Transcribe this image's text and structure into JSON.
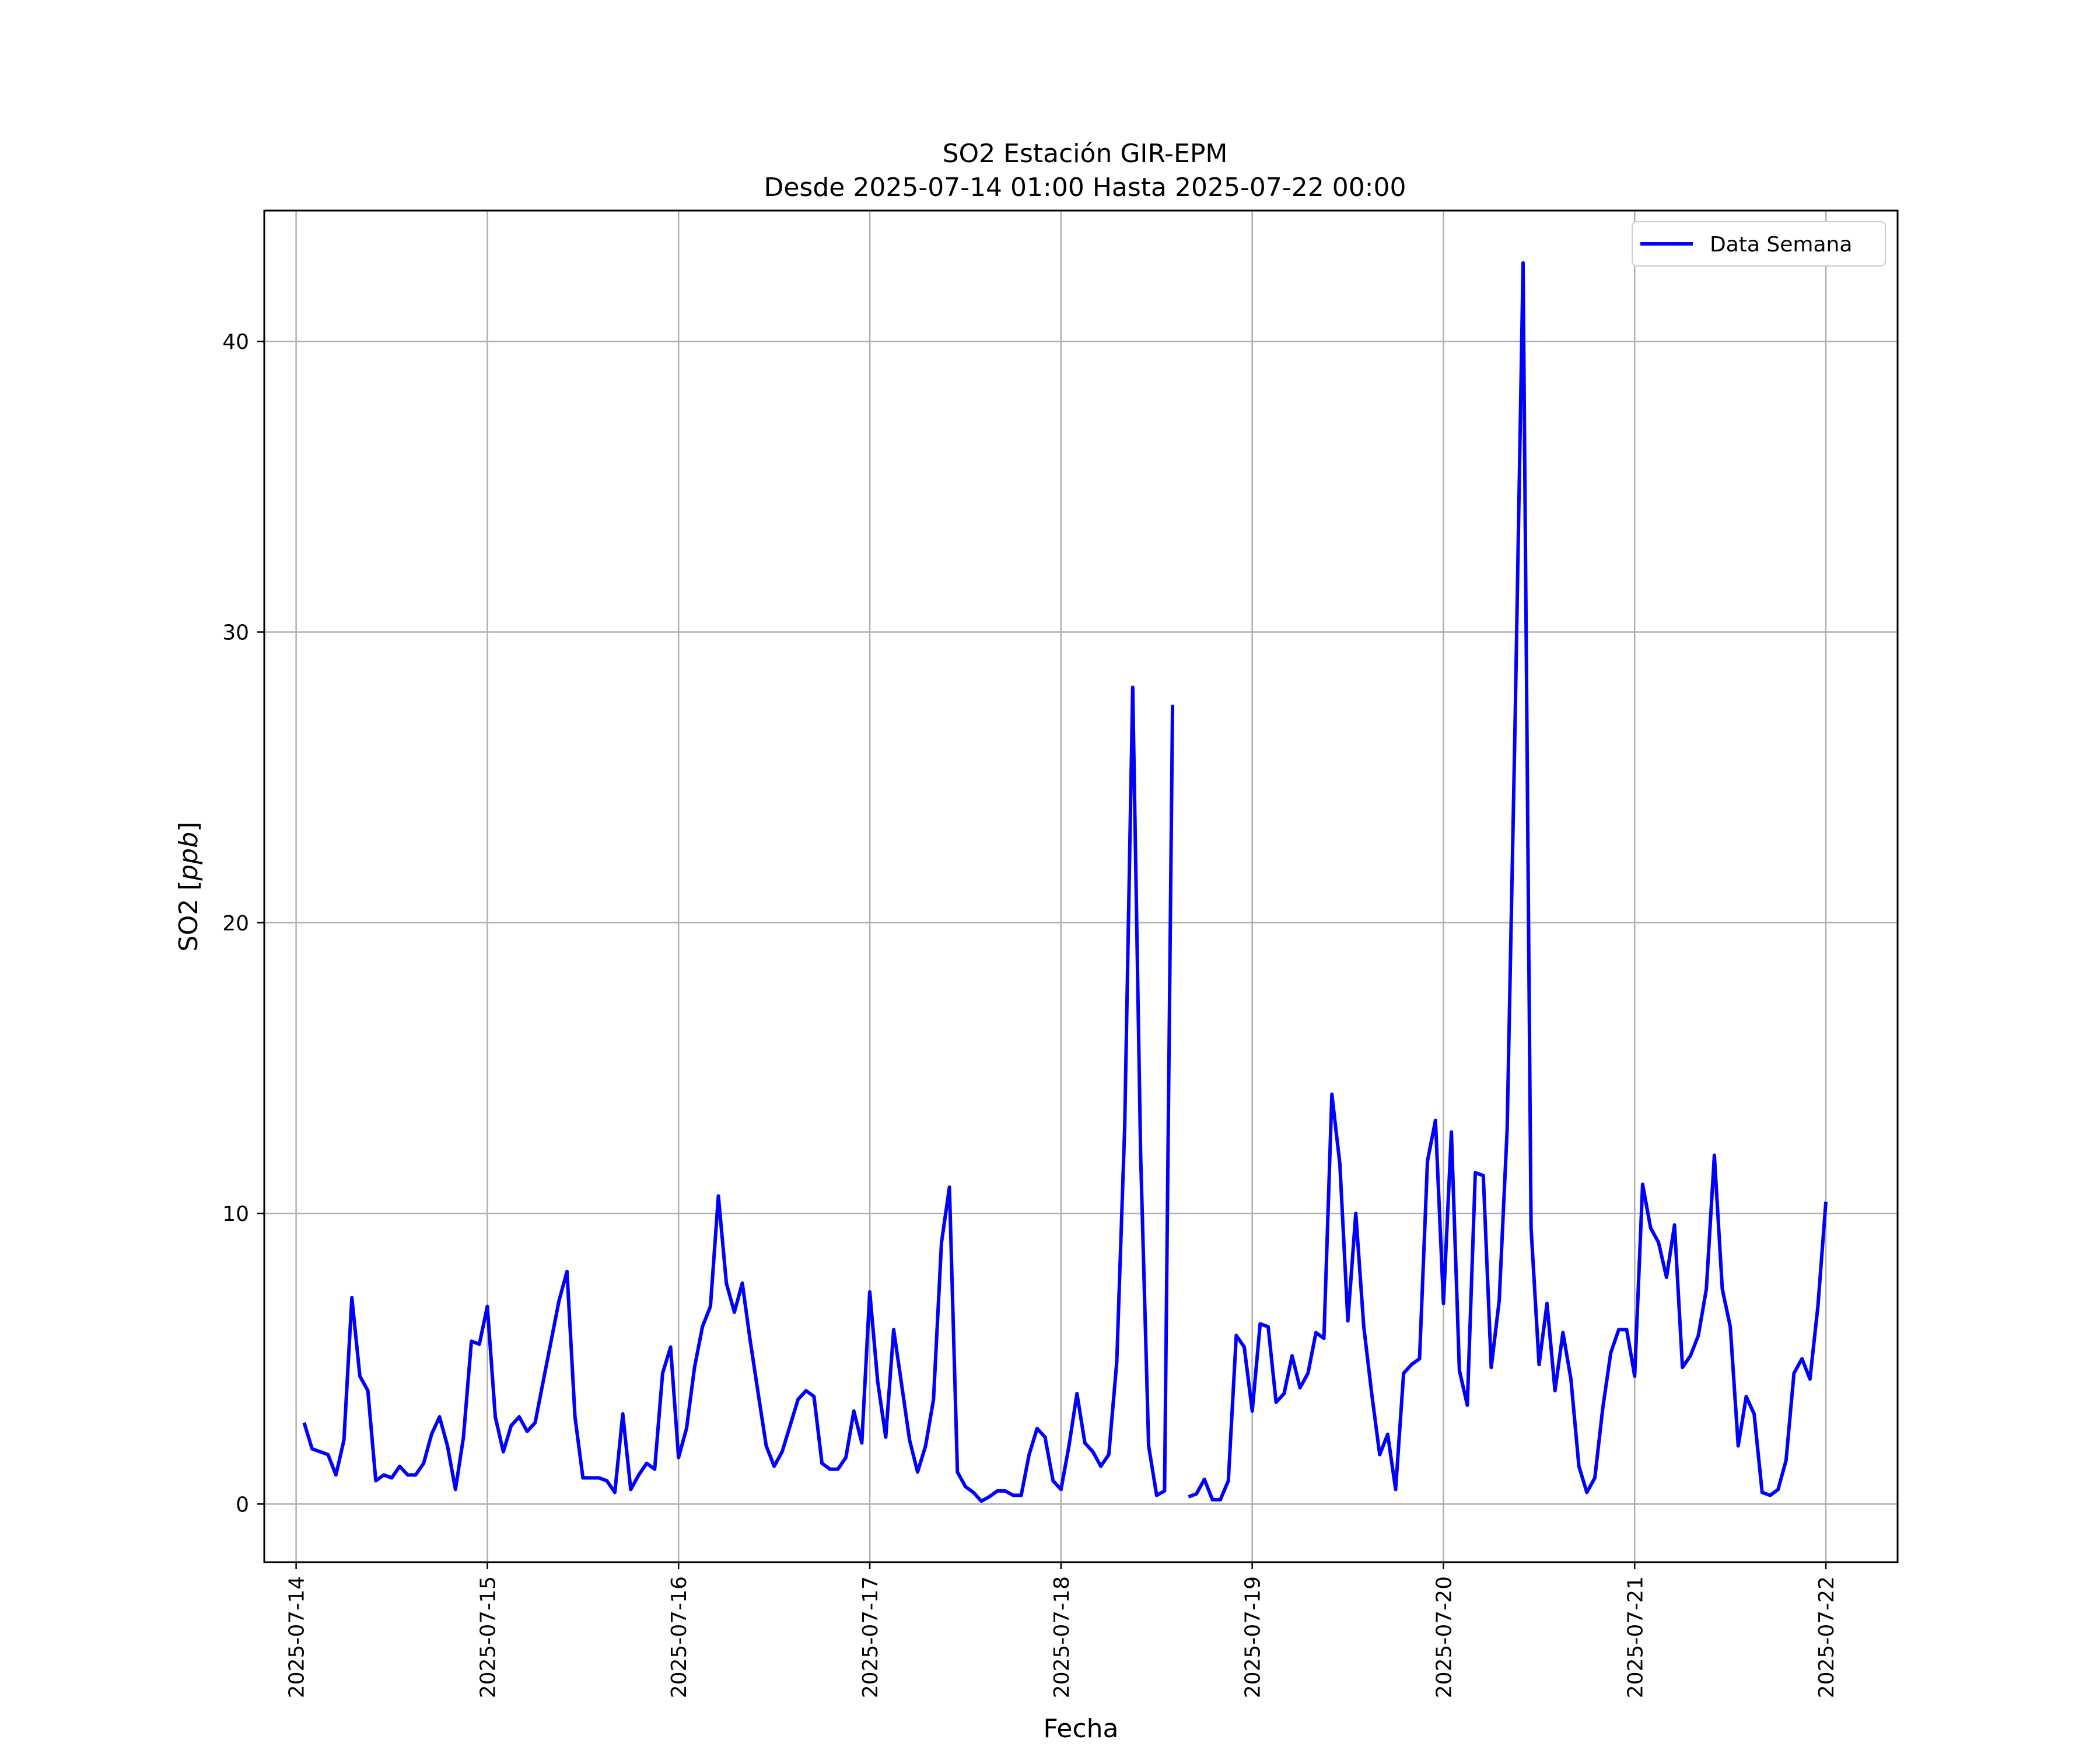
{
  "chart_data": {
    "type": "line",
    "title": "SO2 Estación GIR-EPM",
    "subtitle": "Desde 2025-07-14 01:00 Hasta 2025-07-22 00:00",
    "xlabel": "Fecha",
    "ylabel": "SO2 [ppb]",
    "ylabel_unit": "ppb",
    "ylim": [
      -2,
      44.5
    ],
    "x_range": [
      "2025-07-13T20:00",
      "2025-07-22T09:00"
    ],
    "grid": true,
    "legend_position": "upper right",
    "line_color": "#0000ff",
    "x_ticks": [
      "2025-07-14",
      "2025-07-15",
      "2025-07-16",
      "2025-07-17",
      "2025-07-18",
      "2025-07-19",
      "2025-07-20",
      "2025-07-21",
      "2025-07-22"
    ],
    "y_ticks": [
      0,
      10,
      20,
      30,
      40
    ],
    "series": [
      {
        "name": "Data Semana",
        "color": "#0000ff",
        "points": [
          [
            "2025-07-14T01:00",
            2.8
          ],
          [
            "2025-07-14T02:00",
            1.9
          ],
          [
            "2025-07-14T04:00",
            1.7
          ],
          [
            "2025-07-14T05:00",
            1.0
          ],
          [
            "2025-07-14T06:00",
            2.2
          ],
          [
            "2025-07-14T07:00",
            7.1
          ],
          [
            "2025-07-14T08:00",
            4.4
          ],
          [
            "2025-07-14T09:00",
            3.9
          ],
          [
            "2025-07-14T10:00",
            0.8
          ],
          [
            "2025-07-14T11:00",
            1.0
          ],
          [
            "2025-07-14T12:00",
            0.9
          ],
          [
            "2025-07-14T13:00",
            1.3
          ],
          [
            "2025-07-14T14:00",
            1.0
          ],
          [
            "2025-07-14T15:00",
            1.0
          ],
          [
            "2025-07-14T16:00",
            1.4
          ],
          [
            "2025-07-14T17:00",
            2.4
          ],
          [
            "2025-07-14T18:00",
            3.0
          ],
          [
            "2025-07-14T19:00",
            2.0
          ],
          [
            "2025-07-14T20:00",
            0.5
          ],
          [
            "2025-07-14T21:00",
            2.3
          ],
          [
            "2025-07-14T22:00",
            5.6
          ],
          [
            "2025-07-14T23:00",
            5.5
          ],
          [
            "2025-07-15T00:00",
            6.8
          ],
          [
            "2025-07-15T01:00",
            3.0
          ],
          [
            "2025-07-15T02:00",
            1.8
          ],
          [
            "2025-07-15T03:00",
            2.7
          ],
          [
            "2025-07-15T04:00",
            3.0
          ],
          [
            "2025-07-15T05:00",
            2.5
          ],
          [
            "2025-07-15T06:00",
            2.8
          ],
          [
            "2025-07-15T07:00",
            4.2
          ],
          [
            "2025-07-15T08:00",
            5.6
          ],
          [
            "2025-07-15T09:00",
            7.0
          ],
          [
            "2025-07-15T10:00",
            8.0
          ],
          [
            "2025-07-15T11:00",
            3.0
          ],
          [
            "2025-07-15T12:00",
            0.9
          ],
          [
            "2025-07-15T13:00",
            0.9
          ],
          [
            "2025-07-15T14:00",
            0.9
          ],
          [
            "2025-07-15T15:00",
            0.8
          ],
          [
            "2025-07-15T16:00",
            0.4
          ],
          [
            "2025-07-15T17:00",
            3.1
          ],
          [
            "2025-07-15T18:00",
            0.5
          ],
          [
            "2025-07-15T19:00",
            1.0
          ],
          [
            "2025-07-15T20:00",
            1.4
          ],
          [
            "2025-07-15T21:00",
            1.2
          ],
          [
            "2025-07-15T22:00",
            4.5
          ],
          [
            "2025-07-15T23:00",
            5.4
          ],
          [
            "2025-07-16T00:00",
            1.6
          ],
          [
            "2025-07-16T01:00",
            2.6
          ],
          [
            "2025-07-16T02:00",
            4.7
          ],
          [
            "2025-07-16T03:00",
            6.1
          ],
          [
            "2025-07-16T04:00",
            6.8
          ],
          [
            "2025-07-16T05:00",
            10.6
          ],
          [
            "2025-07-16T06:00",
            7.6
          ],
          [
            "2025-07-16T07:00",
            6.6
          ],
          [
            "2025-07-16T08:00",
            7.6
          ],
          [
            "2025-07-16T09:00",
            5.6
          ],
          [
            "2025-07-16T10:00",
            3.8
          ],
          [
            "2025-07-16T11:00",
            2.0
          ],
          [
            "2025-07-16T12:00",
            1.3
          ],
          [
            "2025-07-16T13:00",
            1.8
          ],
          [
            "2025-07-16T14:00",
            2.7
          ],
          [
            "2025-07-16T15:00",
            3.6
          ],
          [
            "2025-07-16T16:00",
            3.9
          ],
          [
            "2025-07-16T17:00",
            3.7
          ],
          [
            "2025-07-16T18:00",
            1.4
          ],
          [
            "2025-07-16T19:00",
            1.2
          ],
          [
            "2025-07-16T20:00",
            1.2
          ],
          [
            "2025-07-16T21:00",
            1.6
          ],
          [
            "2025-07-16T22:00",
            3.2
          ],
          [
            "2025-07-16T23:00",
            2.1
          ],
          [
            "2025-07-17T00:00",
            7.3
          ],
          [
            "2025-07-17T01:00",
            4.2
          ],
          [
            "2025-07-17T02:00",
            2.3
          ],
          [
            "2025-07-17T03:00",
            6.0
          ],
          [
            "2025-07-17T04:00",
            4.1
          ],
          [
            "2025-07-17T05:00",
            2.2
          ],
          [
            "2025-07-17T06:00",
            1.1
          ],
          [
            "2025-07-17T07:00",
            2.0
          ],
          [
            "2025-07-17T08:00",
            3.6
          ],
          [
            "2025-07-17T09:00",
            9.0
          ],
          [
            "2025-07-17T10:00",
            10.9
          ],
          [
            "2025-07-17T11:00",
            1.1
          ],
          [
            "2025-07-17T12:00",
            0.6
          ],
          [
            "2025-07-17T13:00",
            0.4
          ],
          [
            "2025-07-17T14:00",
            0.1
          ],
          [
            "2025-07-17T15:00",
            0.25
          ],
          [
            "2025-07-17T16:00",
            0.45
          ],
          [
            "2025-07-17T17:00",
            0.45
          ],
          [
            "2025-07-17T18:00",
            0.3
          ],
          [
            "2025-07-17T19:00",
            0.3
          ],
          [
            "2025-07-17T20:00",
            1.7
          ],
          [
            "2025-07-17T21:00",
            2.6
          ],
          [
            "2025-07-17T22:00",
            2.3
          ],
          [
            "2025-07-17T23:00",
            0.8
          ],
          [
            "2025-07-18T00:00",
            0.5
          ],
          [
            "2025-07-18T01:00",
            2.0
          ],
          [
            "2025-07-18T02:00",
            3.8
          ],
          [
            "2025-07-18T03:00",
            2.1
          ],
          [
            "2025-07-18T04:00",
            1.8
          ],
          [
            "2025-07-18T05:00",
            1.3
          ],
          [
            "2025-07-18T06:00",
            1.7
          ],
          [
            "2025-07-18T07:00",
            4.9
          ],
          [
            "2025-07-18T08:00",
            13.0
          ],
          [
            "2025-07-18T09:00",
            28.1
          ],
          [
            "2025-07-18T10:00",
            12.0
          ],
          [
            "2025-07-18T11:00",
            2.0
          ],
          [
            "2025-07-18T12:00",
            0.3
          ],
          [
            "2025-07-18T13:00",
            0.45
          ],
          [
            "2025-07-18T14:00",
            27.5
          ],
          null,
          [
            "2025-07-18T16:00",
            0.25
          ],
          [
            "2025-07-18T17:00",
            0.35
          ],
          [
            "2025-07-18T18:00",
            0.85
          ],
          [
            "2025-07-18T19:00",
            0.15
          ],
          [
            "2025-07-18T20:00",
            0.15
          ],
          [
            "2025-07-18T21:00",
            0.8
          ],
          [
            "2025-07-18T22:00",
            5.8
          ],
          [
            "2025-07-18T23:00",
            5.4
          ],
          [
            "2025-07-19T00:00",
            3.2
          ],
          [
            "2025-07-19T01:00",
            6.2
          ],
          [
            "2025-07-19T02:00",
            6.1
          ],
          [
            "2025-07-19T03:00",
            3.5
          ],
          [
            "2025-07-19T04:00",
            3.8
          ],
          [
            "2025-07-19T05:00",
            5.1
          ],
          [
            "2025-07-19T06:00",
            4.0
          ],
          [
            "2025-07-19T07:00",
            4.5
          ],
          [
            "2025-07-19T08:00",
            5.9
          ],
          [
            "2025-07-19T09:00",
            5.7
          ],
          [
            "2025-07-19T10:00",
            14.1
          ],
          [
            "2025-07-19T11:00",
            11.7
          ],
          [
            "2025-07-19T12:00",
            6.3
          ],
          [
            "2025-07-19T13:00",
            10.0
          ],
          [
            "2025-07-19T14:00",
            6.1
          ],
          [
            "2025-07-19T15:00",
            3.8
          ],
          [
            "2025-07-19T16:00",
            1.7
          ],
          [
            "2025-07-19T17:00",
            2.4
          ],
          [
            "2025-07-19T18:00",
            0.5
          ],
          [
            "2025-07-19T19:00",
            4.5
          ],
          [
            "2025-07-19T20:00",
            4.8
          ],
          [
            "2025-07-19T21:00",
            5.0
          ],
          [
            "2025-07-19T22:00",
            11.8
          ],
          [
            "2025-07-19T23:00",
            13.2
          ],
          [
            "2025-07-20T00:00",
            6.9
          ],
          [
            "2025-07-20T01:00",
            12.8
          ],
          [
            "2025-07-20T02:00",
            4.6
          ],
          [
            "2025-07-20T03:00",
            3.4
          ],
          [
            "2025-07-20T04:00",
            11.4
          ],
          [
            "2025-07-20T05:00",
            11.3
          ],
          [
            "2025-07-20T06:00",
            4.7
          ],
          [
            "2025-07-20T07:00",
            7.0
          ],
          [
            "2025-07-20T08:00",
            12.9
          ],
          [
            "2025-07-20T09:00",
            27.0
          ],
          [
            "2025-07-20T10:00",
            42.7
          ],
          [
            "2025-07-20T11:00",
            9.5
          ],
          [
            "2025-07-20T12:00",
            4.8
          ],
          [
            "2025-07-20T13:00",
            6.9
          ],
          [
            "2025-07-20T14:00",
            3.9
          ],
          [
            "2025-07-20T15:00",
            5.9
          ],
          [
            "2025-07-20T16:00",
            4.3
          ],
          [
            "2025-07-20T17:00",
            1.3
          ],
          [
            "2025-07-20T18:00",
            0.4
          ],
          [
            "2025-07-20T19:00",
            0.9
          ],
          [
            "2025-07-20T20:00",
            3.3
          ],
          [
            "2025-07-20T21:00",
            5.2
          ],
          [
            "2025-07-20T22:00",
            6.0
          ],
          [
            "2025-07-20T23:00",
            6.0
          ],
          [
            "2025-07-21T00:00",
            4.4
          ],
          [
            "2025-07-21T01:00",
            11.0
          ],
          [
            "2025-07-21T02:00",
            9.5
          ],
          [
            "2025-07-21T03:00",
            9.0
          ],
          [
            "2025-07-21T04:00",
            7.8
          ],
          [
            "2025-07-21T05:00",
            9.6
          ],
          [
            "2025-07-21T06:00",
            4.7
          ],
          [
            "2025-07-21T07:00",
            5.1
          ],
          [
            "2025-07-21T08:00",
            5.8
          ],
          [
            "2025-07-21T09:00",
            7.4
          ],
          [
            "2025-07-21T10:00",
            12.0
          ],
          [
            "2025-07-21T11:00",
            7.4
          ],
          [
            "2025-07-21T12:00",
            6.1
          ],
          [
            "2025-07-21T13:00",
            2.0
          ],
          [
            "2025-07-21T14:00",
            3.7
          ],
          [
            "2025-07-21T15:00",
            3.1
          ],
          [
            "2025-07-21T16:00",
            0.4
          ],
          [
            "2025-07-21T17:00",
            0.3
          ],
          [
            "2025-07-21T18:00",
            0.5
          ],
          [
            "2025-07-21T19:00",
            1.5
          ],
          [
            "2025-07-21T20:00",
            4.5
          ],
          [
            "2025-07-21T21:00",
            5.0
          ],
          [
            "2025-07-21T22:00",
            4.3
          ],
          [
            "2025-07-21T23:00",
            6.8
          ],
          [
            "2025-07-22T00:00",
            10.4
          ]
        ]
      }
    ]
  }
}
